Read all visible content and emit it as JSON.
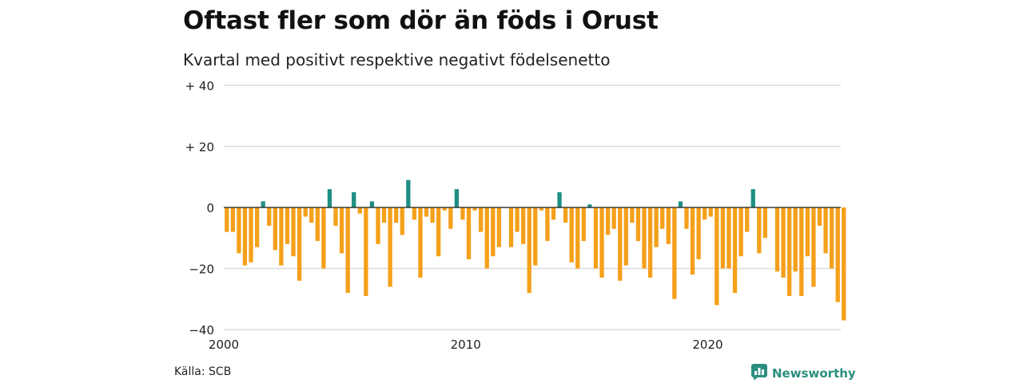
{
  "title": "Oftast fler som dör än föds i Orust",
  "subtitle": "Kvartal med positivt respektive negativt födelsenetto",
  "source": "Källa: SCB",
  "brand": {
    "name": "Newsworthy",
    "icon": "newsworthy-logo-icon",
    "color": "#2a8f7e"
  },
  "chart_data": {
    "type": "bar",
    "x_start_year": 2000,
    "quarters_per_year": 4,
    "y_ticks": [
      {
        "value": 40,
        "label": "+ 40"
      },
      {
        "value": 20,
        "label": "+ 20"
      },
      {
        "value": 0,
        "label": "0"
      },
      {
        "value": -20,
        "label": "−20"
      },
      {
        "value": -40,
        "label": "−40"
      }
    ],
    "x_ticks": [
      {
        "value": 2000,
        "label": "2000"
      },
      {
        "value": 2010,
        "label": "2010"
      },
      {
        "value": 2020,
        "label": "2020"
      }
    ],
    "ylim": [
      -40,
      40
    ],
    "xlim": [
      2000,
      2025.5
    ],
    "grid": true,
    "colors": {
      "positive": "#1f8f84",
      "negative": "#f5a01a"
    },
    "values": [
      -8,
      -8,
      -15,
      -19,
      -18,
      -13,
      2,
      -6,
      -14,
      -19,
      -12,
      -16,
      -24,
      -3,
      -5,
      -11,
      -20,
      6,
      -6,
      -15,
      -28,
      5,
      -2,
      -29,
      2,
      -12,
      -5,
      -26,
      -5,
      -9,
      9,
      -4,
      -23,
      -3,
      -5,
      -16,
      -1,
      -7,
      6,
      -4,
      -17,
      -1,
      -8,
      -20,
      -16,
      -13,
      0,
      -13,
      -8,
      -12,
      -28,
      -19,
      -1,
      -11,
      -4,
      5,
      -5,
      -18,
      -20,
      -11,
      1,
      -20,
      -23,
      -9,
      -7,
      -24,
      -19,
      -5,
      -11,
      -20,
      -23,
      -13,
      -7,
      -12,
      -30,
      2,
      -7,
      -22,
      -17,
      -4,
      -3,
      -32,
      -20,
      -20,
      -28,
      -16,
      -8,
      6,
      -15,
      -10,
      0,
      -21,
      -23,
      -29,
      -21,
      -29,
      -16,
      -26,
      -6,
      -15,
      -20,
      -31,
      -37
    ]
  }
}
